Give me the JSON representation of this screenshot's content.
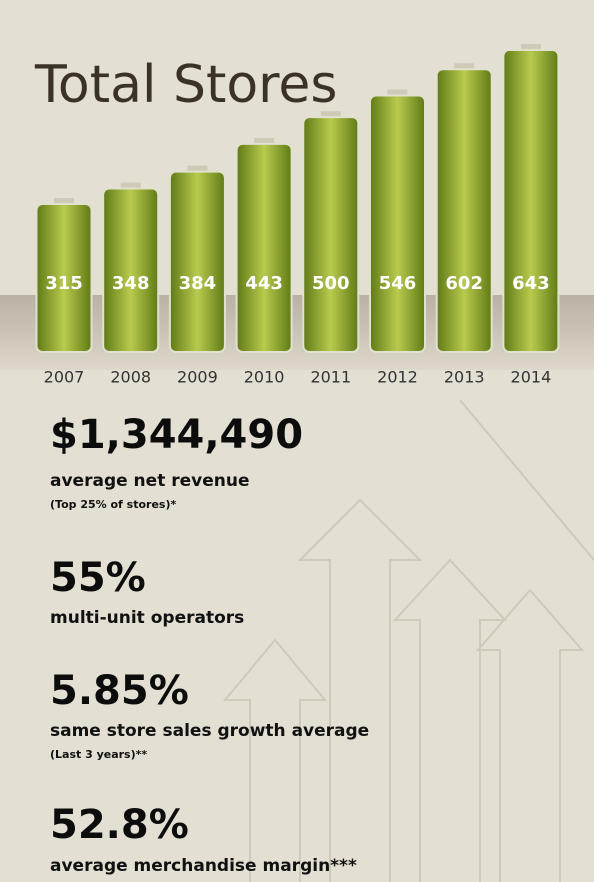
{
  "chart_data": {
    "type": "bar",
    "title": "Total Stores",
    "categories": [
      "2007",
      "2008",
      "2009",
      "2010",
      "2011",
      "2012",
      "2013",
      "2014"
    ],
    "values": [
      315,
      348,
      384,
      443,
      500,
      546,
      602,
      643
    ],
    "color": "#8fa832"
  },
  "stats": [
    {
      "value": "$1,344,490",
      "label": "average net revenue",
      "note": "(Top 25% of stores)*"
    },
    {
      "value": "55%",
      "label": "multi-unit operators"
    },
    {
      "value": "5.85%",
      "label": "same store sales growth average",
      "note": "(Last 3 years)**"
    },
    {
      "value": "52.8%",
      "label": "average merchandise margin***"
    }
  ]
}
